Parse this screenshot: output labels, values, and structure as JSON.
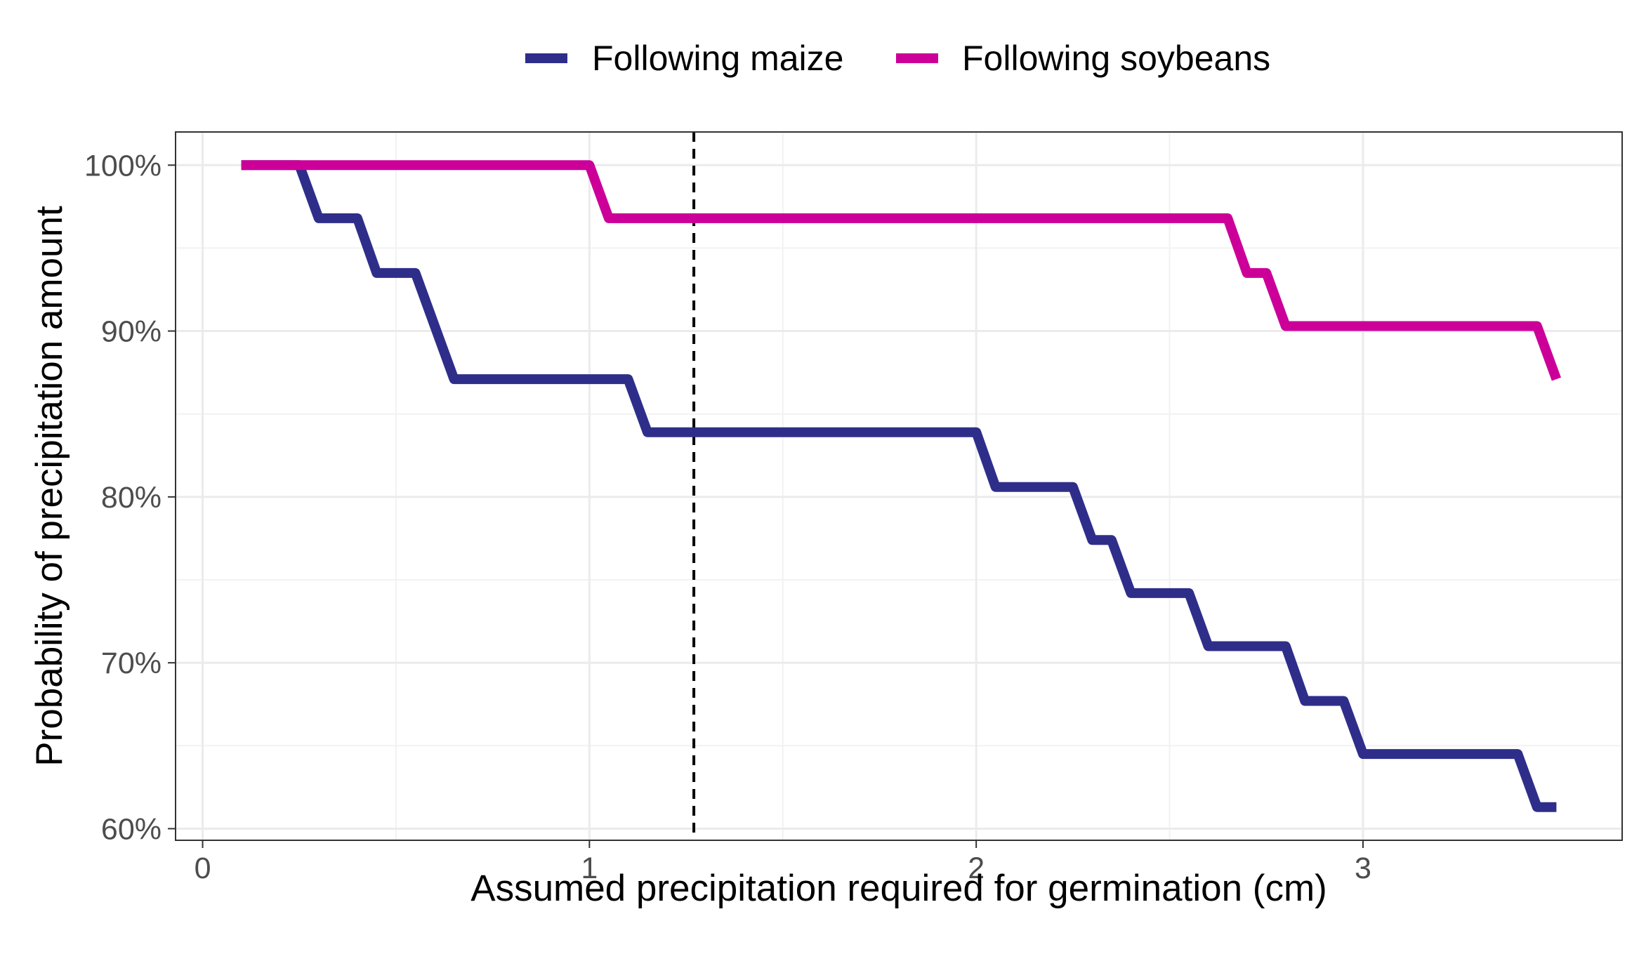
{
  "chart_data": {
    "type": "line",
    "title": "",
    "xlabel": "Assumed precipitation required for germination (cm)",
    "ylabel": "Probability of precipitation amount",
    "xlim": [
      -0.07,
      3.67
    ],
    "ylim": [
      59.3,
      102.0
    ],
    "x_ticks": [
      0,
      1,
      2,
      3
    ],
    "x_tick_labels": [
      "0",
      "1",
      "2",
      "3"
    ],
    "y_ticks": [
      60,
      70,
      80,
      90,
      100
    ],
    "y_tick_labels": [
      "60%",
      "70%",
      "80%",
      "90%",
      "100%"
    ],
    "grid": true,
    "legend_position": "top",
    "reference_line": {
      "x": 1.27,
      "style": "dashed",
      "color": "#000000"
    },
    "series": [
      {
        "name": "Following maize",
        "color": "#2e2e8a",
        "points": [
          [
            0.1,
            100.0
          ],
          [
            0.25,
            100.0
          ],
          [
            0.3,
            96.8
          ],
          [
            0.4,
            96.8
          ],
          [
            0.45,
            93.5
          ],
          [
            0.55,
            93.5
          ],
          [
            0.65,
            87.1
          ],
          [
            1.1,
            87.1
          ],
          [
            1.15,
            83.9
          ],
          [
            2.0,
            83.9
          ],
          [
            2.05,
            80.6
          ],
          [
            2.25,
            80.6
          ],
          [
            2.3,
            77.4
          ],
          [
            2.35,
            77.4
          ],
          [
            2.4,
            74.2
          ],
          [
            2.55,
            74.2
          ],
          [
            2.6,
            71.0
          ],
          [
            2.8,
            71.0
          ],
          [
            2.85,
            67.7
          ],
          [
            2.95,
            67.7
          ],
          [
            3.0,
            64.5
          ],
          [
            3.4,
            64.5
          ],
          [
            3.45,
            61.3
          ],
          [
            3.5,
            61.3
          ]
        ]
      },
      {
        "name": "Following soybeans",
        "color": "#cc0099",
        "points": [
          [
            0.1,
            100.0
          ],
          [
            1.0,
            100.0
          ],
          [
            1.05,
            96.8
          ],
          [
            2.65,
            96.8
          ],
          [
            2.7,
            93.5
          ],
          [
            2.75,
            93.5
          ],
          [
            2.8,
            90.3
          ],
          [
            3.45,
            90.3
          ],
          [
            3.5,
            87.1
          ]
        ]
      }
    ]
  }
}
